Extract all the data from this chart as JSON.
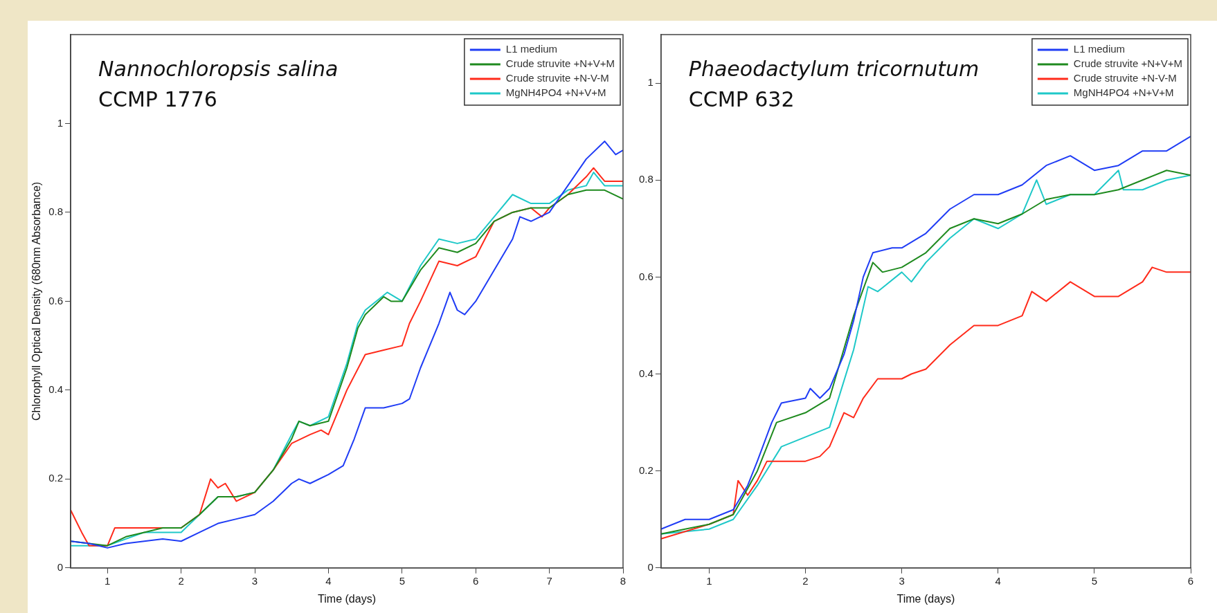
{
  "chart_data": [
    {
      "type": "line",
      "ylabel": "Chlorophyll Optical Density (680nm Absorbance)",
      "xlabel": "Time (days)",
      "annotations": [
        "Nannochloropsis salina",
        "CCMP 1776"
      ],
      "xlim": [
        0.5,
        8
      ],
      "xticks": [
        1,
        2,
        3,
        4,
        5,
        6,
        7,
        8
      ],
      "ylim": [
        0,
        1.2
      ],
      "yticks": [
        0,
        0.2,
        0.4,
        0.6,
        0.8,
        1
      ],
      "grid": false,
      "legend": "top right",
      "marker": "none",
      "line_style": "solid",
      "series": [
        {
          "name": "L1 medium",
          "color": "#1f3cf5",
          "x": [
            0.5,
            0.75,
            1.0,
            1.25,
            1.5,
            1.75,
            2.0,
            2.25,
            2.5,
            2.75,
            3.0,
            3.25,
            3.5,
            3.6,
            3.75,
            4.0,
            4.2,
            4.35,
            4.5,
            4.75,
            5.0,
            5.1,
            5.25,
            5.5,
            5.65,
            5.75,
            5.85,
            6.0,
            6.25,
            6.5,
            6.6,
            6.75,
            7.0,
            7.25,
            7.5,
            7.75,
            7.9,
            8.0
          ],
          "values": [
            0.06,
            0.055,
            0.045,
            0.055,
            0.06,
            0.065,
            0.06,
            0.08,
            0.1,
            0.11,
            0.12,
            0.15,
            0.19,
            0.2,
            0.19,
            0.21,
            0.23,
            0.29,
            0.36,
            0.36,
            0.37,
            0.38,
            0.45,
            0.55,
            0.62,
            0.58,
            0.57,
            0.6,
            0.67,
            0.74,
            0.79,
            0.78,
            0.8,
            0.86,
            0.92,
            0.96,
            0.93,
            0.94
          ]
        },
        {
          "name": "Crude struvite +N+V+M",
          "color": "#1e8a1e",
          "x": [
            0.5,
            1.0,
            1.25,
            1.5,
            1.75,
            2.0,
            2.25,
            2.5,
            2.75,
            3.0,
            3.25,
            3.5,
            3.6,
            3.75,
            4.0,
            4.25,
            4.4,
            4.5,
            4.75,
            4.85,
            5.0,
            5.25,
            5.5,
            5.75,
            6.0,
            6.25,
            6.5,
            6.75,
            7.0,
            7.25,
            7.5,
            7.75,
            8.0
          ],
          "values": [
            0.06,
            0.05,
            0.07,
            0.08,
            0.09,
            0.09,
            0.12,
            0.16,
            0.16,
            0.17,
            0.22,
            0.29,
            0.33,
            0.32,
            0.33,
            0.45,
            0.54,
            0.57,
            0.61,
            0.6,
            0.6,
            0.67,
            0.72,
            0.71,
            0.73,
            0.78,
            0.8,
            0.81,
            0.81,
            0.84,
            0.85,
            0.85,
            0.83
          ]
        },
        {
          "name": "Crude struvite +N-V-M",
          "color": "#ff2a1a",
          "x": [
            0.5,
            0.65,
            0.75,
            1.0,
            1.1,
            1.25,
            1.5,
            1.75,
            2.0,
            2.25,
            2.4,
            2.5,
            2.6,
            2.75,
            3.0,
            3.25,
            3.5,
            3.75,
            3.9,
            4.0,
            4.25,
            4.5,
            4.75,
            5.0,
            5.1,
            5.25,
            5.5,
            5.75,
            6.0,
            6.25,
            6.5,
            6.75,
            6.9,
            7.0,
            7.25,
            7.5,
            7.6,
            7.75,
            8.0
          ],
          "values": [
            0.13,
            0.08,
            0.05,
            0.05,
            0.09,
            0.09,
            0.09,
            0.09,
            0.09,
            0.12,
            0.2,
            0.18,
            0.19,
            0.15,
            0.17,
            0.22,
            0.28,
            0.3,
            0.31,
            0.3,
            0.4,
            0.48,
            0.49,
            0.5,
            0.55,
            0.6,
            0.69,
            0.68,
            0.7,
            0.78,
            0.8,
            0.81,
            0.79,
            0.81,
            0.84,
            0.88,
            0.9,
            0.87,
            0.87
          ]
        },
        {
          "name": "MgNH4PO4 +N+V+M",
          "color": "#1ec8c8",
          "x": [
            0.5,
            1.0,
            1.5,
            2.0,
            2.25,
            2.5,
            2.75,
            3.0,
            3.25,
            3.5,
            3.6,
            3.75,
            4.0,
            4.25,
            4.4,
            4.5,
            4.8,
            5.0,
            5.25,
            5.5,
            5.75,
            6.0,
            6.25,
            6.5,
            6.75,
            7.0,
            7.25,
            7.5,
            7.6,
            7.75,
            8.0
          ],
          "values": [
            0.05,
            0.05,
            0.08,
            0.08,
            0.12,
            0.16,
            0.16,
            0.17,
            0.22,
            0.3,
            0.33,
            0.32,
            0.34,
            0.46,
            0.55,
            0.58,
            0.62,
            0.6,
            0.68,
            0.74,
            0.73,
            0.74,
            0.79,
            0.84,
            0.82,
            0.82,
            0.85,
            0.86,
            0.89,
            0.86,
            0.86
          ]
        }
      ]
    },
    {
      "type": "line",
      "xlabel": "Time (days)",
      "annotations": [
        "Phaeodactylum tricornutum",
        "CCMP 632"
      ],
      "xlim": [
        0.5,
        6
      ],
      "xticks": [
        1,
        2,
        3,
        4,
        5,
        6
      ],
      "ylim": [
        0,
        1.1
      ],
      "yticks": [
        0,
        0.2,
        0.4,
        0.6,
        0.8,
        1
      ],
      "grid": false,
      "legend": "top right",
      "marker": "none",
      "line_style": "solid",
      "series": [
        {
          "name": "L1 medium",
          "color": "#1f3cf5",
          "x": [
            0.5,
            0.75,
            1.0,
            1.25,
            1.4,
            1.5,
            1.65,
            1.75,
            2.0,
            2.05,
            2.15,
            2.25,
            2.4,
            2.5,
            2.6,
            2.7,
            2.9,
            3.0,
            3.25,
            3.5,
            3.75,
            4.0,
            4.25,
            4.5,
            4.75,
            5.0,
            5.25,
            5.5,
            5.75,
            6.0
          ],
          "values": [
            0.08,
            0.1,
            0.1,
            0.12,
            0.17,
            0.22,
            0.3,
            0.34,
            0.35,
            0.37,
            0.35,
            0.37,
            0.44,
            0.51,
            0.6,
            0.65,
            0.66,
            0.66,
            0.69,
            0.74,
            0.77,
            0.77,
            0.79,
            0.83,
            0.85,
            0.82,
            0.83,
            0.86,
            0.86,
            0.89
          ]
        },
        {
          "name": "Crude struvite +N+V+M",
          "color": "#1e8a1e",
          "x": [
            0.5,
            1.0,
            1.25,
            1.5,
            1.7,
            2.0,
            2.25,
            2.5,
            2.7,
            2.8,
            3.0,
            3.25,
            3.5,
            3.75,
            4.0,
            4.25,
            4.5,
            4.75,
            5.0,
            5.25,
            5.5,
            5.75,
            6.0
          ],
          "values": [
            0.07,
            0.09,
            0.11,
            0.2,
            0.3,
            0.32,
            0.35,
            0.52,
            0.63,
            0.61,
            0.62,
            0.65,
            0.7,
            0.72,
            0.71,
            0.73,
            0.76,
            0.77,
            0.77,
            0.78,
            0.8,
            0.82,
            0.81
          ]
        },
        {
          "name": "Crude struvite +N-V-M",
          "color": "#ff2a1a",
          "x": [
            0.5,
            1.0,
            1.25,
            1.3,
            1.4,
            1.5,
            1.6,
            2.0,
            2.15,
            2.25,
            2.4,
            2.5,
            2.6,
            2.75,
            3.0,
            3.1,
            3.25,
            3.5,
            3.75,
            4.0,
            4.25,
            4.35,
            4.5,
            4.75,
            5.0,
            5.25,
            5.5,
            5.6,
            5.75,
            6.0
          ],
          "values": [
            0.06,
            0.09,
            0.11,
            0.18,
            0.15,
            0.18,
            0.22,
            0.22,
            0.23,
            0.25,
            0.32,
            0.31,
            0.35,
            0.39,
            0.39,
            0.4,
            0.41,
            0.46,
            0.5,
            0.5,
            0.52,
            0.57,
            0.55,
            0.59,
            0.56,
            0.56,
            0.59,
            0.62,
            0.61,
            0.61
          ]
        },
        {
          "name": "MgNH4PO4 +N+V+M",
          "color": "#1ec8c8",
          "x": [
            0.5,
            1.0,
            1.25,
            1.5,
            1.75,
            2.0,
            2.25,
            2.5,
            2.65,
            2.75,
            3.0,
            3.1,
            3.25,
            3.5,
            3.75,
            4.0,
            4.25,
            4.4,
            4.5,
            4.75,
            5.0,
            5.25,
            5.3,
            5.5,
            5.75,
            6.0
          ],
          "values": [
            0.07,
            0.08,
            0.1,
            0.17,
            0.25,
            0.27,
            0.29,
            0.45,
            0.58,
            0.57,
            0.61,
            0.59,
            0.63,
            0.68,
            0.72,
            0.7,
            0.73,
            0.8,
            0.75,
            0.77,
            0.77,
            0.82,
            0.78,
            0.78,
            0.8,
            0.81
          ]
        }
      ]
    }
  ]
}
